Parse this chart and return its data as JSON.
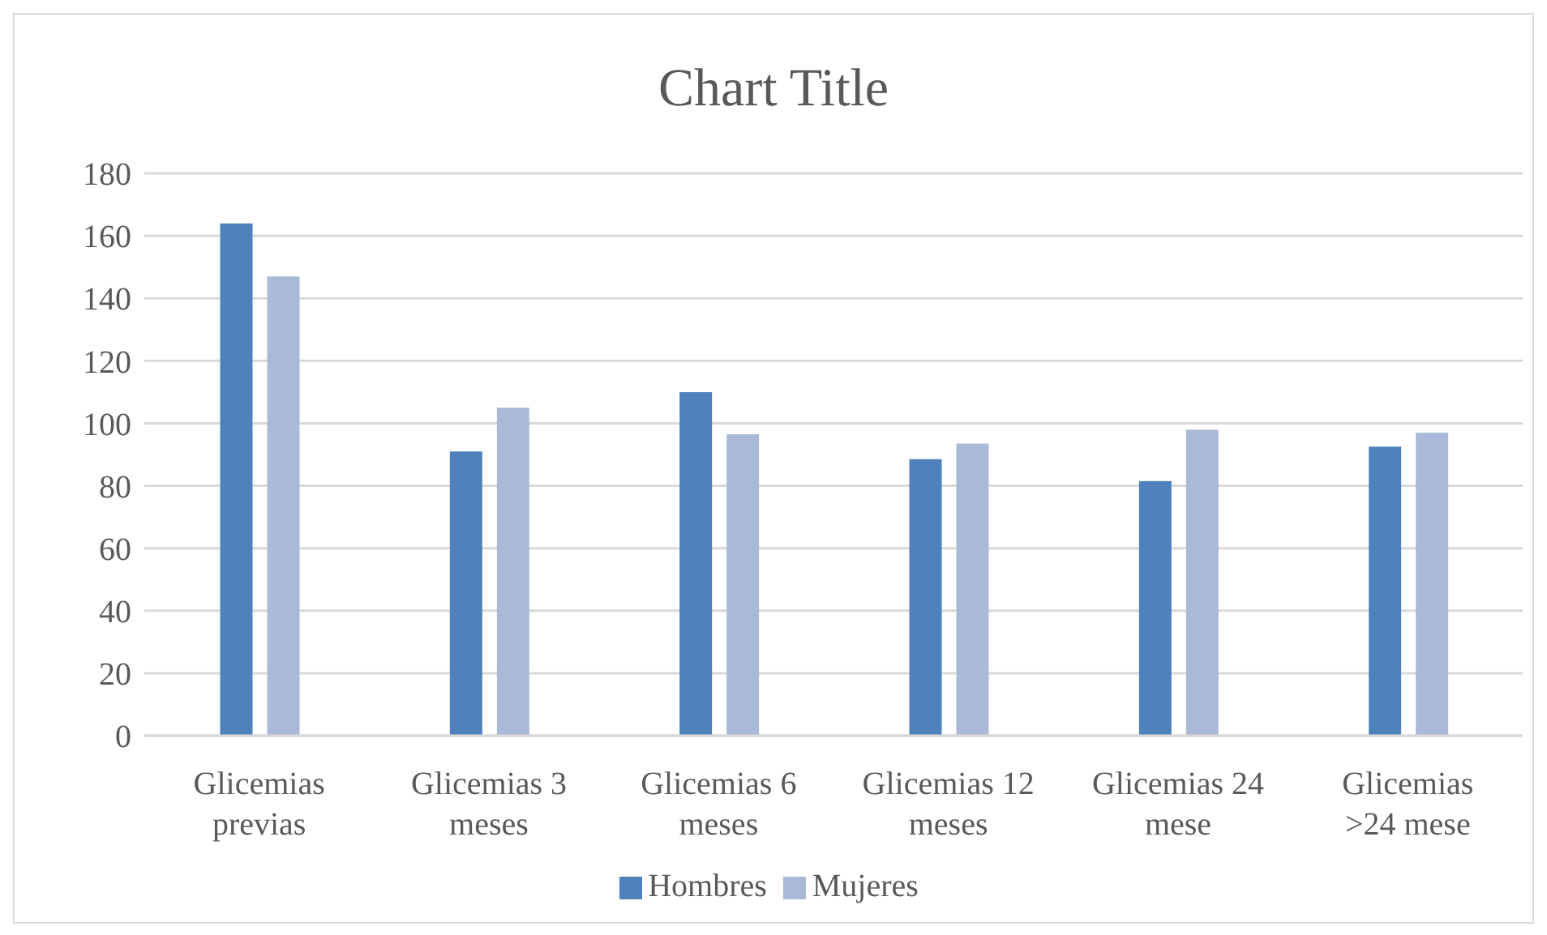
{
  "chart_data": {
    "type": "bar",
    "title": "Chart Title",
    "categories": [
      "Glicemias previas",
      "Glicemias 3 meses",
      "Glicemias 6 meses",
      "Glicemias 12 meses",
      "Glicemias 24 mese",
      "Glicemias >24 mese"
    ],
    "series": [
      {
        "name": "Hombres",
        "color": "#4f81bd",
        "values": [
          164,
          91,
          110,
          88.5,
          81.5,
          92.5
        ]
      },
      {
        "name": "Mujeres",
        "color": "#aab9d7",
        "values": [
          147,
          105,
          96.5,
          93.5,
          98,
          97
        ]
      }
    ],
    "ylim": [
      0,
      180
    ],
    "yticks": [
      0,
      20,
      40,
      60,
      80,
      100,
      120,
      140,
      160,
      180
    ],
    "grid": "y",
    "legend": "bottom"
  }
}
